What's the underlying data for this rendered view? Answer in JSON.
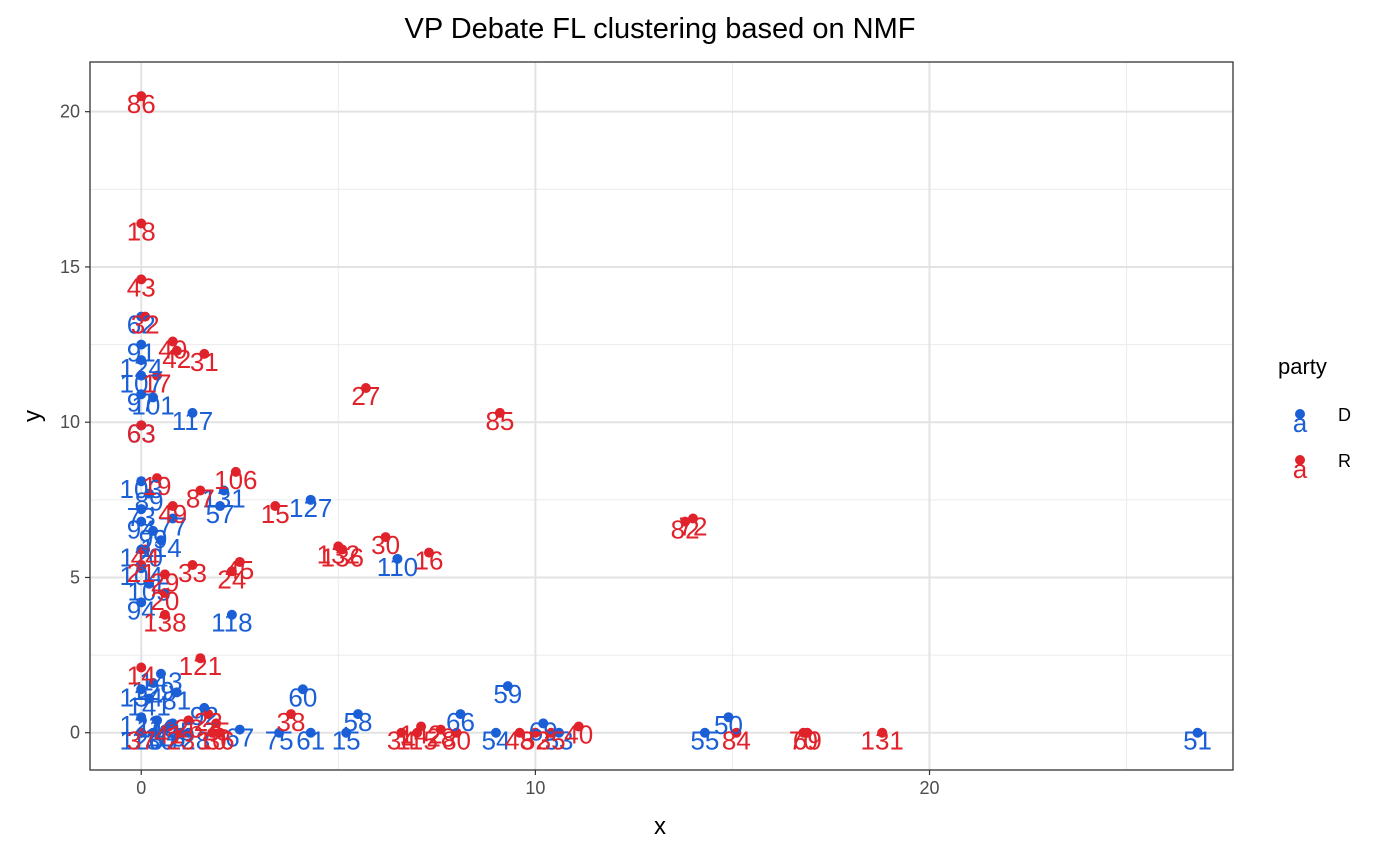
{
  "chart_data": {
    "type": "scatter",
    "title": "VP Debate FL clustering based on NMF",
    "xlabel": "x",
    "ylabel": "y",
    "xlim": [
      -1.3,
      27.7
    ],
    "ylim": [
      -1.2,
      21.6
    ],
    "x_ticks": [
      0,
      10,
      20
    ],
    "y_ticks": [
      0,
      5,
      10,
      15,
      20
    ],
    "x_tick_labels": [
      "0",
      "10",
      "20"
    ],
    "y_tick_labels": [
      "0",
      "5",
      "10",
      "15",
      "20"
    ],
    "grid": true,
    "theme": "bw",
    "legend": {
      "title": "party",
      "placement": "right",
      "key_glyph": "a",
      "entries": [
        {
          "label": "D",
          "color": "#1a5fd6"
        },
        {
          "label": "R",
          "color": "#e0222b"
        }
      ]
    },
    "series": [
      {
        "name": "D",
        "color": "#1a5fd6",
        "points": [
          {
            "x": 26.8,
            "y": 0.0,
            "label": "51"
          },
          {
            "x": 14.9,
            "y": 0.5,
            "label": "50"
          },
          {
            "x": 14.3,
            "y": 0.0,
            "label": "55"
          },
          {
            "x": 9.3,
            "y": 1.5,
            "label": "59"
          },
          {
            "x": 8.1,
            "y": 0.6,
            "label": "66"
          },
          {
            "x": 10.2,
            "y": 0.3,
            "label": "69"
          },
          {
            "x": 9.0,
            "y": 0.0,
            "label": "54"
          },
          {
            "x": 10.6,
            "y": 0.0,
            "label": "53"
          },
          {
            "x": 5.5,
            "y": 0.6,
            "label": "58"
          },
          {
            "x": 5.2,
            "y": 0.0,
            "label": "15"
          },
          {
            "x": 4.1,
            "y": 1.4,
            "label": "60"
          },
          {
            "x": 4.3,
            "y": 0.0,
            "label": "61"
          },
          {
            "x": 3.5,
            "y": 0.0,
            "label": "75"
          },
          {
            "x": 2.5,
            "y": 0.1,
            "label": "67"
          },
          {
            "x": 6.5,
            "y": 5.6,
            "label": "110"
          },
          {
            "x": 4.3,
            "y": 7.5,
            "label": "127"
          },
          {
            "x": 2.1,
            "y": 7.8,
            "label": "131"
          },
          {
            "x": 2.0,
            "y": 7.3,
            "label": "57"
          },
          {
            "x": 2.3,
            "y": 3.8,
            "label": "118"
          },
          {
            "x": 1.3,
            "y": 10.3,
            "label": "117"
          },
          {
            "x": 0.3,
            "y": 10.8,
            "label": "101"
          },
          {
            "x": 0.0,
            "y": 9.9,
            "label": "63"
          },
          {
            "x": 0.0,
            "y": 13.4,
            "label": "62"
          },
          {
            "x": 0.0,
            "y": 12.5,
            "label": "91"
          },
          {
            "x": 0.0,
            "y": 12.0,
            "label": "124"
          },
          {
            "x": 0.0,
            "y": 11.5,
            "label": "107"
          },
          {
            "x": 0.0,
            "y": 10.9,
            "label": "97"
          },
          {
            "x": 0.0,
            "y": 8.1,
            "label": "103"
          },
          {
            "x": 0.2,
            "y": 7.7,
            "label": "89"
          },
          {
            "x": 0.0,
            "y": 7.2,
            "label": "73"
          },
          {
            "x": 0.0,
            "y": 6.8,
            "label": "94"
          },
          {
            "x": 0.8,
            "y": 6.9,
            "label": "77"
          },
          {
            "x": 0.3,
            "y": 6.5,
            "label": "99"
          },
          {
            "x": 0.5,
            "y": 6.2,
            "label": "114"
          },
          {
            "x": 0.0,
            "y": 5.9,
            "label": "120"
          },
          {
            "x": 0.0,
            "y": 5.3,
            "label": "104"
          },
          {
            "x": 0.2,
            "y": 4.8,
            "label": "105"
          },
          {
            "x": 0.0,
            "y": 4.2,
            "label": "94"
          },
          {
            "x": 0.5,
            "y": 1.9,
            "label": "143"
          },
          {
            "x": 0.3,
            "y": 1.6,
            "label": "129"
          },
          {
            "x": 0.0,
            "y": 1.4,
            "label": "134"
          },
          {
            "x": 0.9,
            "y": 1.3,
            "label": "81"
          },
          {
            "x": 0.2,
            "y": 1.1,
            "label": "141"
          },
          {
            "x": 1.6,
            "y": 0.8,
            "label": "92"
          },
          {
            "x": 0.0,
            "y": 0.5,
            "label": "122"
          },
          {
            "x": 0.4,
            "y": 0.4,
            "label": "116"
          },
          {
            "x": 0.8,
            "y": 0.3,
            "label": "125"
          },
          {
            "x": 0.0,
            "y": 0.0,
            "label": "126"
          },
          {
            "x": 0.3,
            "y": 0.0,
            "label": "130"
          },
          {
            "x": 0.6,
            "y": 0.1,
            "label": "113"
          },
          {
            "x": 1.2,
            "y": 0.0,
            "label": "128"
          }
        ]
      },
      {
        "name": "R",
        "color": "#e0222b",
        "points": [
          {
            "x": 0.0,
            "y": 20.5,
            "label": "86"
          },
          {
            "x": 0.0,
            "y": 16.4,
            "label": "18"
          },
          {
            "x": 0.0,
            "y": 14.6,
            "label": "43"
          },
          {
            "x": 0.1,
            "y": 13.4,
            "label": "32"
          },
          {
            "x": 0.8,
            "y": 12.6,
            "label": "40"
          },
          {
            "x": 0.9,
            "y": 12.3,
            "label": "42"
          },
          {
            "x": 1.6,
            "y": 12.2,
            "label": "31"
          },
          {
            "x": 0.4,
            "y": 11.5,
            "label": "17"
          },
          {
            "x": 5.7,
            "y": 11.1,
            "label": "27"
          },
          {
            "x": 9.1,
            "y": 10.3,
            "label": "85"
          },
          {
            "x": 0.0,
            "y": 9.9,
            "label": "63"
          },
          {
            "x": 13.8,
            "y": 6.8,
            "label": "82"
          },
          {
            "x": 14.0,
            "y": 6.9,
            "label": "72"
          },
          {
            "x": 2.4,
            "y": 8.4,
            "label": "106"
          },
          {
            "x": 1.5,
            "y": 7.8,
            "label": "87"
          },
          {
            "x": 0.4,
            "y": 8.2,
            "label": "19"
          },
          {
            "x": 0.8,
            "y": 7.3,
            "label": "49"
          },
          {
            "x": 3.4,
            "y": 7.3,
            "label": "15"
          },
          {
            "x": 6.2,
            "y": 6.3,
            "label": "30"
          },
          {
            "x": 7.3,
            "y": 5.8,
            "label": "16"
          },
          {
            "x": 5.0,
            "y": 6.0,
            "label": "132"
          },
          {
            "x": 5.1,
            "y": 5.9,
            "label": "136"
          },
          {
            "x": 0.1,
            "y": 5.9,
            "label": "44"
          },
          {
            "x": 1.3,
            "y": 5.4,
            "label": "33"
          },
          {
            "x": 2.3,
            "y": 5.2,
            "label": "24"
          },
          {
            "x": 2.5,
            "y": 5.5,
            "label": "45"
          },
          {
            "x": 0.6,
            "y": 5.1,
            "label": "29"
          },
          {
            "x": 0.0,
            "y": 5.4,
            "label": "21"
          },
          {
            "x": 0.6,
            "y": 4.5,
            "label": "20"
          },
          {
            "x": 0.6,
            "y": 3.8,
            "label": "138"
          },
          {
            "x": 1.5,
            "y": 2.4,
            "label": "121"
          },
          {
            "x": 0.0,
            "y": 2.1,
            "label": "14"
          },
          {
            "x": 3.8,
            "y": 0.6,
            "label": "38"
          },
          {
            "x": 7.1,
            "y": 0.2,
            "label": "142"
          },
          {
            "x": 7.6,
            "y": 0.1,
            "label": "28"
          },
          {
            "x": 8.0,
            "y": 0.0,
            "label": "80"
          },
          {
            "x": 6.6,
            "y": 0.0,
            "label": "34"
          },
          {
            "x": 7.0,
            "y": 0.0,
            "label": "115"
          },
          {
            "x": 9.6,
            "y": 0.0,
            "label": "48"
          },
          {
            "x": 10.0,
            "y": 0.0,
            "label": "52"
          },
          {
            "x": 10.4,
            "y": 0.0,
            "label": "35"
          },
          {
            "x": 11.1,
            "y": 0.2,
            "label": "40"
          },
          {
            "x": 15.1,
            "y": 0.0,
            "label": "84"
          },
          {
            "x": 16.8,
            "y": 0.0,
            "label": "70"
          },
          {
            "x": 16.9,
            "y": 0.0,
            "label": "69"
          },
          {
            "x": 18.8,
            "y": 0.0,
            "label": "131"
          },
          {
            "x": 1.9,
            "y": 0.3,
            "label": "25"
          },
          {
            "x": 1.7,
            "y": 0.6,
            "label": "22"
          },
          {
            "x": 1.2,
            "y": 0.4,
            "label": "26"
          },
          {
            "x": 1.8,
            "y": 0.0,
            "label": "10"
          },
          {
            "x": 2.0,
            "y": 0.0,
            "label": "36"
          },
          {
            "x": 1.0,
            "y": 0.0,
            "label": "23"
          },
          {
            "x": 0.7,
            "y": 0.2,
            "label": "41"
          },
          {
            "x": 0.0,
            "y": 0.0,
            "label": "37"
          }
        ]
      }
    ]
  }
}
